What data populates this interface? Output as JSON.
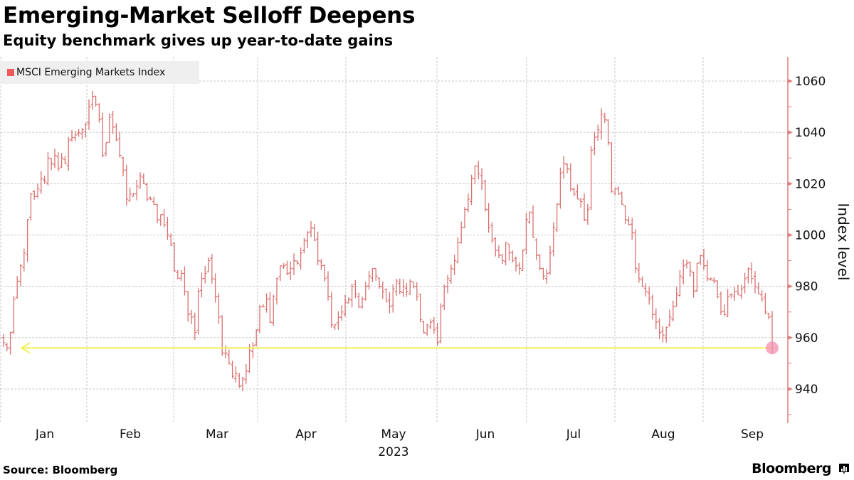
{
  "header": {
    "title": "Emerging-Market Selloff Deepens",
    "subtitle": "Equity benchmark gives up year-to-date gains"
  },
  "footer": {
    "source": "Source: Bloomberg",
    "brand": "Bloomberg"
  },
  "colors": {
    "series": "#d9706f",
    "legend_swatch": "#f0585c",
    "axis": "#e07a7a",
    "reference_line": "#f2f25a",
    "end_marker": "#f48fb1",
    "grid": "#c8c8c8"
  },
  "chart_data": {
    "type": "line",
    "style": "ohlc-bars",
    "title": "Emerging-Market Selloff Deepens",
    "subtitle": "Equity benchmark gives up year-to-date gains",
    "legend": [
      {
        "name": "MSCI Emerging Markets Index",
        "placement": "top-left"
      }
    ],
    "xlabel": "2023",
    "ylabel": "Index level",
    "y_axis_side": "right",
    "ylim": [
      925,
      1068
    ],
    "yticks": [
      940,
      960,
      980,
      1000,
      1020,
      1040,
      1060
    ],
    "ytick_labels": [
      "940",
      "960",
      "980",
      "1000",
      "1020",
      "1040",
      "1060"
    ],
    "xticks": [
      "Jan",
      "Feb",
      "Mar",
      "Apr",
      "May",
      "Jun",
      "Jul",
      "Aug",
      "Sep"
    ],
    "x_year_label": "2023",
    "grid": true,
    "reference_line": {
      "value": 956,
      "label": "",
      "direction": "arrow-left",
      "description": "Horizontal line at latest close showing year-start level"
    },
    "end_marker": {
      "value": 956
    },
    "series": [
      {
        "name": "MSCI Emerging Markets Index",
        "closes": [
          958,
          956,
          962,
          975,
          982,
          988,
          993,
          1006,
          1016,
          1015,
          1018,
          1022,
          1021,
          1030,
          1028,
          1031,
          1026,
          1030,
          1028,
          1037,
          1038,
          1039,
          1040,
          1041,
          1043,
          1050,
          1054,
          1051,
          1045,
          1031,
          1036,
          1046,
          1042,
          1037,
          1031,
          1025,
          1014,
          1016,
          1016,
          1019,
          1023,
          1020,
          1014,
          1014,
          1012,
          1006,
          1008,
          1004,
          1000,
          996,
          986,
          983,
          985,
          978,
          969,
          968,
          962,
          978,
          983,
          985,
          990,
          983,
          976,
          968,
          954,
          954,
          950,
          945,
          946,
          941,
          944,
          947,
          955,
          957,
          963,
          972,
          972,
          975,
          966,
          976,
          983,
          988,
          988,
          985,
          987,
          990,
          989,
          993,
          998,
          1001,
          1003,
          998,
          990,
          988,
          983,
          976,
          965,
          965,
          968,
          970,
          974,
          975,
          980,
          977,
          972,
          975,
          980,
          984,
          987,
          984,
          980,
          978,
          974,
          972,
          979,
          982,
          978,
          980,
          978,
          982,
          980,
          976,
          967,
          962,
          965,
          966,
          963,
          958,
          972,
          980,
          983,
          987,
          990,
          997,
          1003,
          1010,
          1014,
          1022,
          1027,
          1024,
          1020,
          1010,
          1003,
          998,
          994,
          992,
          990,
          997,
          993,
          990,
          988,
          987,
          994,
          1006,
          1009,
          999,
          992,
          987,
          984,
          985,
          993,
          1003,
          1012,
          1024,
          1028,
          1026,
          1018,
          1016,
          1014,
          1013,
          1006,
          1010,
          1033,
          1038,
          1041,
          1047,
          1045,
          1036,
          1017,
          1018,
          1016,
          1012,
          1006,
          1004,
          1001,
          987,
          983,
          980,
          978,
          975,
          969,
          966,
          962,
          961,
          964,
          968,
          972,
          977,
          984,
          988,
          989,
          986,
          978,
          989,
          992,
          988,
          983,
          983,
          982,
          976,
          970,
          969,
          976,
          977,
          978,
          977,
          979,
          983,
          987,
          983,
          980,
          977,
          975,
          970,
          968,
          956
        ]
      }
    ]
  }
}
